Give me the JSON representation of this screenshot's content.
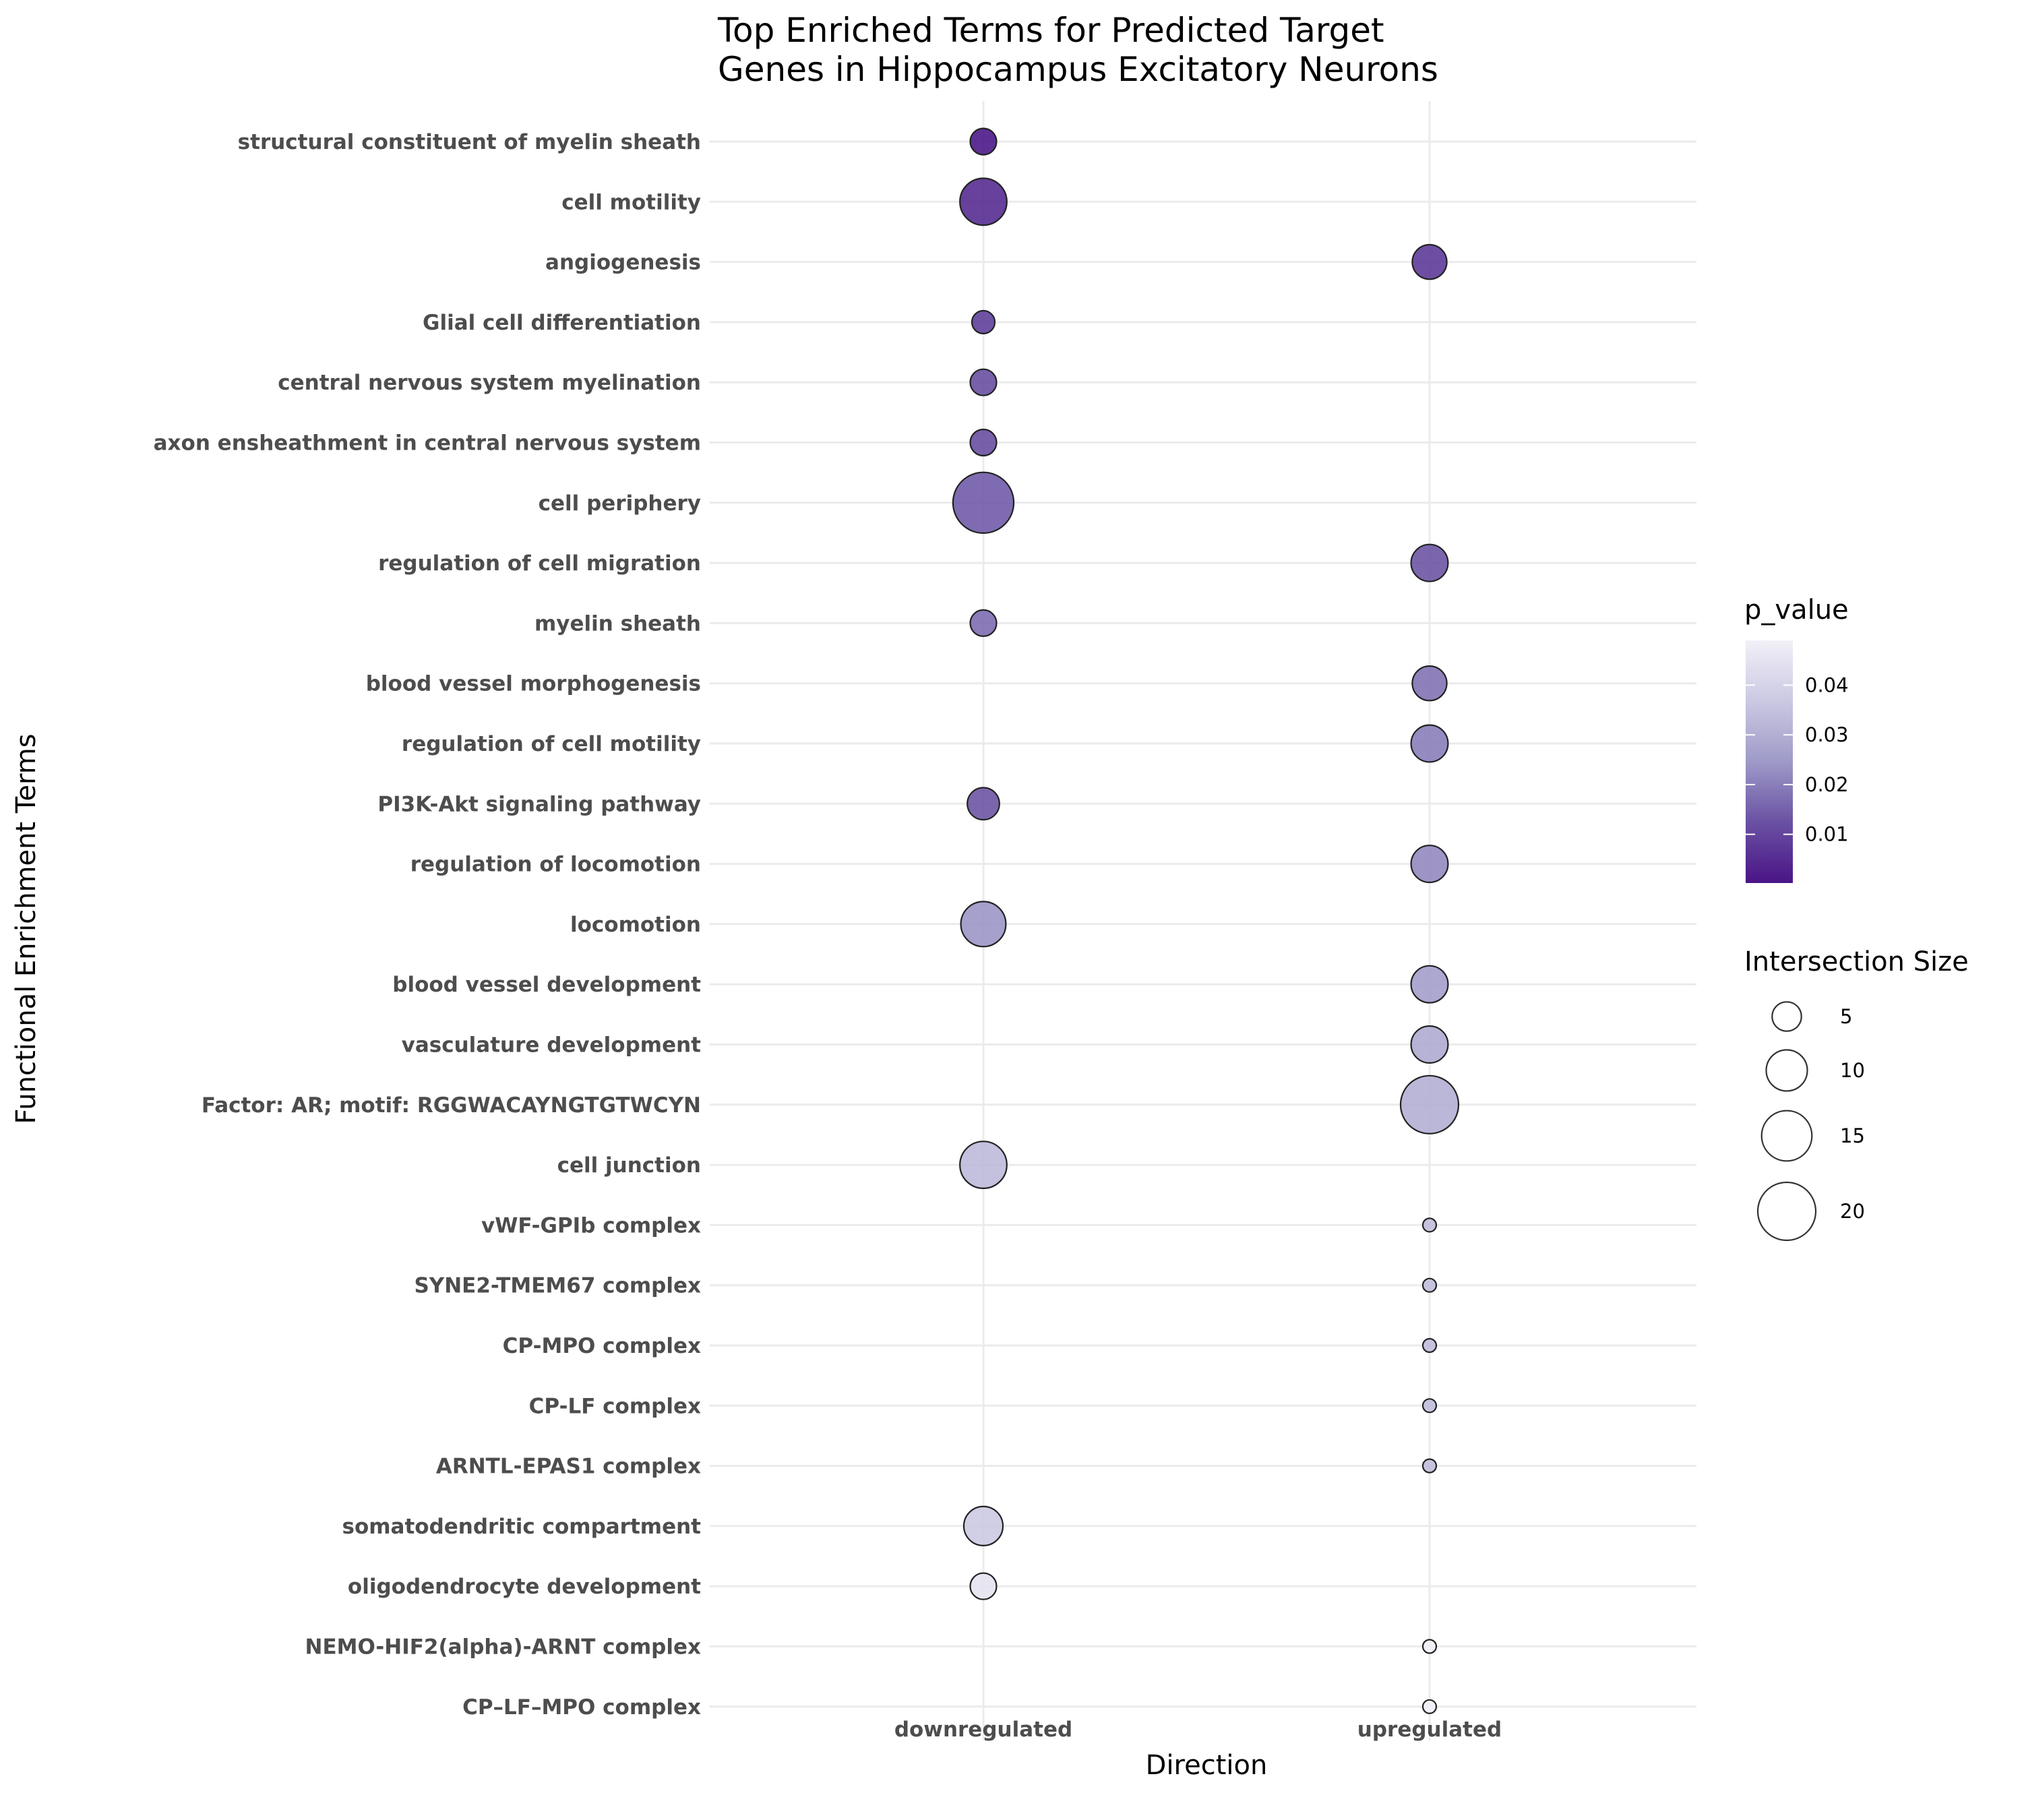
{
  "chart_data": {
    "type": "scatter",
    "title": "Top Enriched Terms for Predicted Target Genes in Hippocampus Excitatory Neurons",
    "title_lines": [
      "Top Enriched Terms for Predicted Target",
      "Genes in Hippocampus Excitatory Neurons"
    ],
    "xlabel": "Direction",
    "ylabel": "Functional Enrichment Terms",
    "x_categories": [
      "downregulated",
      "upregulated"
    ],
    "y_categories": [
      "structural constituent of myelin sheath",
      "cell motility",
      "angiogenesis",
      "Glial cell differentiation",
      "central nervous system myelination",
      "axon ensheathment in central nervous system",
      "cell periphery",
      "regulation of cell migration",
      "myelin sheath",
      "blood vessel morphogenesis",
      "regulation of cell motility",
      "PI3K-Akt signaling pathway",
      "regulation of locomotion",
      "locomotion",
      "blood vessel development",
      "vasculature development",
      "Factor: AR; motif: RGGWACAYNGTGTWCYN",
      "cell junction",
      "vWF-GPIb complex",
      "SYNE2-TMEM67 complex",
      "CP-MPO complex",
      "CP-LF complex",
      "ARNTL-EPAS1 complex",
      "somatodendritic compartment",
      "oligodendrocyte development",
      "NEMO-HIF2(alpha)-ARNT complex",
      "CP–LF–MPO complex"
    ],
    "points": [
      {
        "term": "structural constituent of myelin sheath",
        "direction": "downregulated",
        "intersection_size": 4,
        "p_value": 0.001
      },
      {
        "term": "cell motility",
        "direction": "downregulated",
        "intersection_size": 13,
        "p_value": 0.005
      },
      {
        "term": "angiogenesis",
        "direction": "upregulated",
        "intersection_size": 7,
        "p_value": 0.008
      },
      {
        "term": "Glial cell differentiation",
        "direction": "downregulated",
        "intersection_size": 3,
        "p_value": 0.009
      },
      {
        "term": "central nervous system myelination",
        "direction": "downregulated",
        "intersection_size": 4,
        "p_value": 0.012
      },
      {
        "term": "axon ensheathment in central nervous system",
        "direction": "downregulated",
        "intersection_size": 4,
        "p_value": 0.012
      },
      {
        "term": "cell periphery",
        "direction": "downregulated",
        "intersection_size": 22,
        "p_value": 0.014
      },
      {
        "term": "regulation of cell migration",
        "direction": "upregulated",
        "intersection_size": 8,
        "p_value": 0.013
      },
      {
        "term": "myelin sheath",
        "direction": "downregulated",
        "intersection_size": 4,
        "p_value": 0.017
      },
      {
        "term": "blood vessel morphogenesis",
        "direction": "upregulated",
        "intersection_size": 7,
        "p_value": 0.018
      },
      {
        "term": "regulation of cell motility",
        "direction": "upregulated",
        "intersection_size": 8,
        "p_value": 0.02
      },
      {
        "term": "PI3K-Akt signaling pathway",
        "direction": "downregulated",
        "intersection_size": 6,
        "p_value": 0.013
      },
      {
        "term": "regulation of locomotion",
        "direction": "upregulated",
        "intersection_size": 8,
        "p_value": 0.022
      },
      {
        "term": "locomotion",
        "direction": "downregulated",
        "intersection_size": 12,
        "p_value": 0.024
      },
      {
        "term": "blood vessel development",
        "direction": "upregulated",
        "intersection_size": 8,
        "p_value": 0.026
      },
      {
        "term": "vasculature development",
        "direction": "upregulated",
        "intersection_size": 8,
        "p_value": 0.029
      },
      {
        "term": "Factor: AR; motif: RGGWACAYNGTGTWCYN",
        "direction": "upregulated",
        "intersection_size": 20,
        "p_value": 0.03
      },
      {
        "term": "cell junction",
        "direction": "downregulated",
        "intersection_size": 13,
        "p_value": 0.033
      },
      {
        "term": "vWF-GPIb complex",
        "direction": "upregulated",
        "intersection_size": 1,
        "p_value": 0.034
      },
      {
        "term": "SYNE2-TMEM67 complex",
        "direction": "upregulated",
        "intersection_size": 1,
        "p_value": 0.034
      },
      {
        "term": "CP-MPO complex",
        "direction": "upregulated",
        "intersection_size": 1,
        "p_value": 0.034
      },
      {
        "term": "CP-LF complex",
        "direction": "upregulated",
        "intersection_size": 1,
        "p_value": 0.034
      },
      {
        "term": "ARNTL-EPAS1 complex",
        "direction": "upregulated",
        "intersection_size": 1,
        "p_value": 0.034
      },
      {
        "term": "somatodendritic compartment",
        "direction": "downregulated",
        "intersection_size": 9,
        "p_value": 0.037
      },
      {
        "term": "oligodendrocyte development",
        "direction": "downregulated",
        "intersection_size": 4,
        "p_value": 0.045
      },
      {
        "term": "NEMO-HIF2(alpha)-ARNT complex",
        "direction": "upregulated",
        "intersection_size": 1,
        "p_value": 0.049
      },
      {
        "term": "CP–LF–MPO complex",
        "direction": "upregulated",
        "intersection_size": 1,
        "p_value": 0.049
      }
    ],
    "color_legend": {
      "title": "p_value",
      "range": [
        0.0002,
        0.049
      ],
      "ticks": [
        0.01,
        0.02,
        0.03,
        0.04
      ],
      "tick_labels": [
        "0.01",
        "0.02",
        "0.03",
        "0.04"
      ],
      "low_color": "#4a1486",
      "high_color": "#f2f0f7"
    },
    "size_legend": {
      "title": "Intersection Size",
      "breaks": [
        5,
        10,
        15,
        20
      ],
      "labels": [
        "5",
        "10",
        "15",
        "20"
      ]
    },
    "grid": true,
    "legend_position": "right"
  }
}
